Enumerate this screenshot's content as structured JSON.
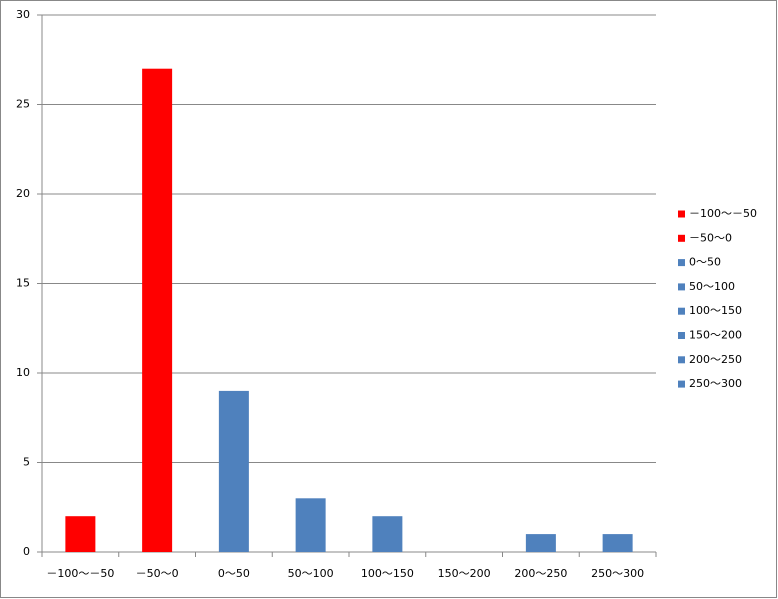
{
  "chart_data": {
    "type": "bar",
    "categories": [
      "－100～－50",
      "－50～0",
      "0～50",
      "50～100",
      "100～150",
      "150～200",
      "200～250",
      "250～300"
    ],
    "values": [
      2,
      27,
      9,
      3,
      2,
      0,
      1,
      1
    ],
    "colors": [
      "#ff0000",
      "#ff0000",
      "#4f81bd",
      "#4f81bd",
      "#4f81bd",
      "#4f81bd",
      "#4f81bd",
      "#4f81bd"
    ],
    "ylim": [
      0,
      30
    ],
    "yticks": [
      0,
      5,
      10,
      15,
      20,
      25,
      30
    ],
    "grid": true,
    "legend": "right"
  }
}
